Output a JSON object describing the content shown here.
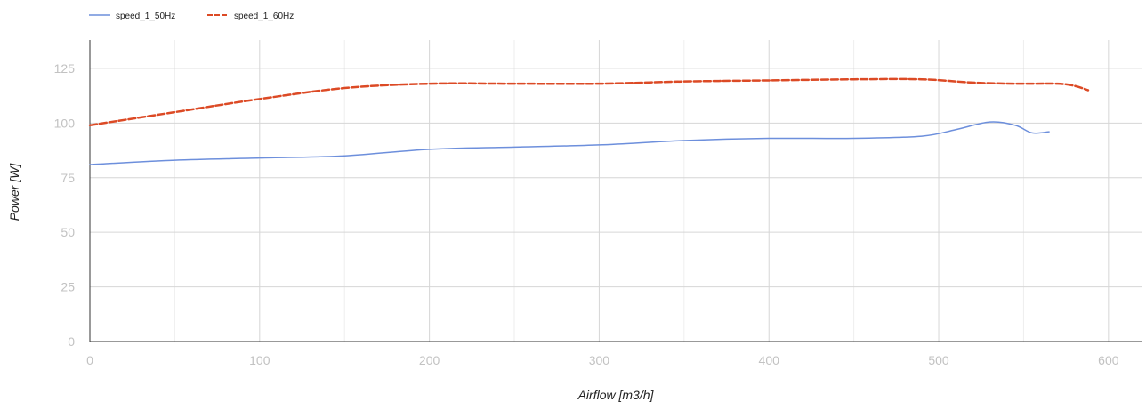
{
  "chart_data": {
    "type": "line",
    "xlabel": "Airflow [m3/h]",
    "ylabel": "Power [W]",
    "xlim": [
      0,
      620
    ],
    "ylim": [
      0,
      138
    ],
    "x_ticks": [
      0,
      100,
      200,
      300,
      400,
      500,
      600
    ],
    "y_ticks": [
      0,
      25,
      50,
      75,
      100,
      125
    ],
    "x_minor_gridlines": [
      50,
      150,
      250,
      350,
      450,
      550
    ],
    "grid": true,
    "legend_position": "top-left",
    "series": [
      {
        "name": "speed_1_50Hz",
        "color": "#6d8fdc",
        "line_style": "solid",
        "x": [
          0,
          50,
          100,
          150,
          200,
          250,
          300,
          350,
          400,
          450,
          490,
          510,
          530,
          545,
          555,
          565
        ],
        "y": [
          81,
          83,
          84,
          85,
          88,
          89,
          90,
          92,
          93,
          93,
          94,
          97,
          100.5,
          99,
          95.5,
          96
        ]
      },
      {
        "name": "speed_1_60Hz",
        "color": "#dc4a25",
        "line_style": "dashed",
        "x": [
          0,
          50,
          100,
          150,
          200,
          250,
          300,
          350,
          400,
          450,
          490,
          520,
          545,
          570,
          580,
          588
        ],
        "y": [
          99,
          105,
          111,
          116,
          118,
          118,
          118,
          119,
          119.5,
          120,
          120,
          118.5,
          118,
          118,
          117,
          115
        ]
      }
    ]
  }
}
